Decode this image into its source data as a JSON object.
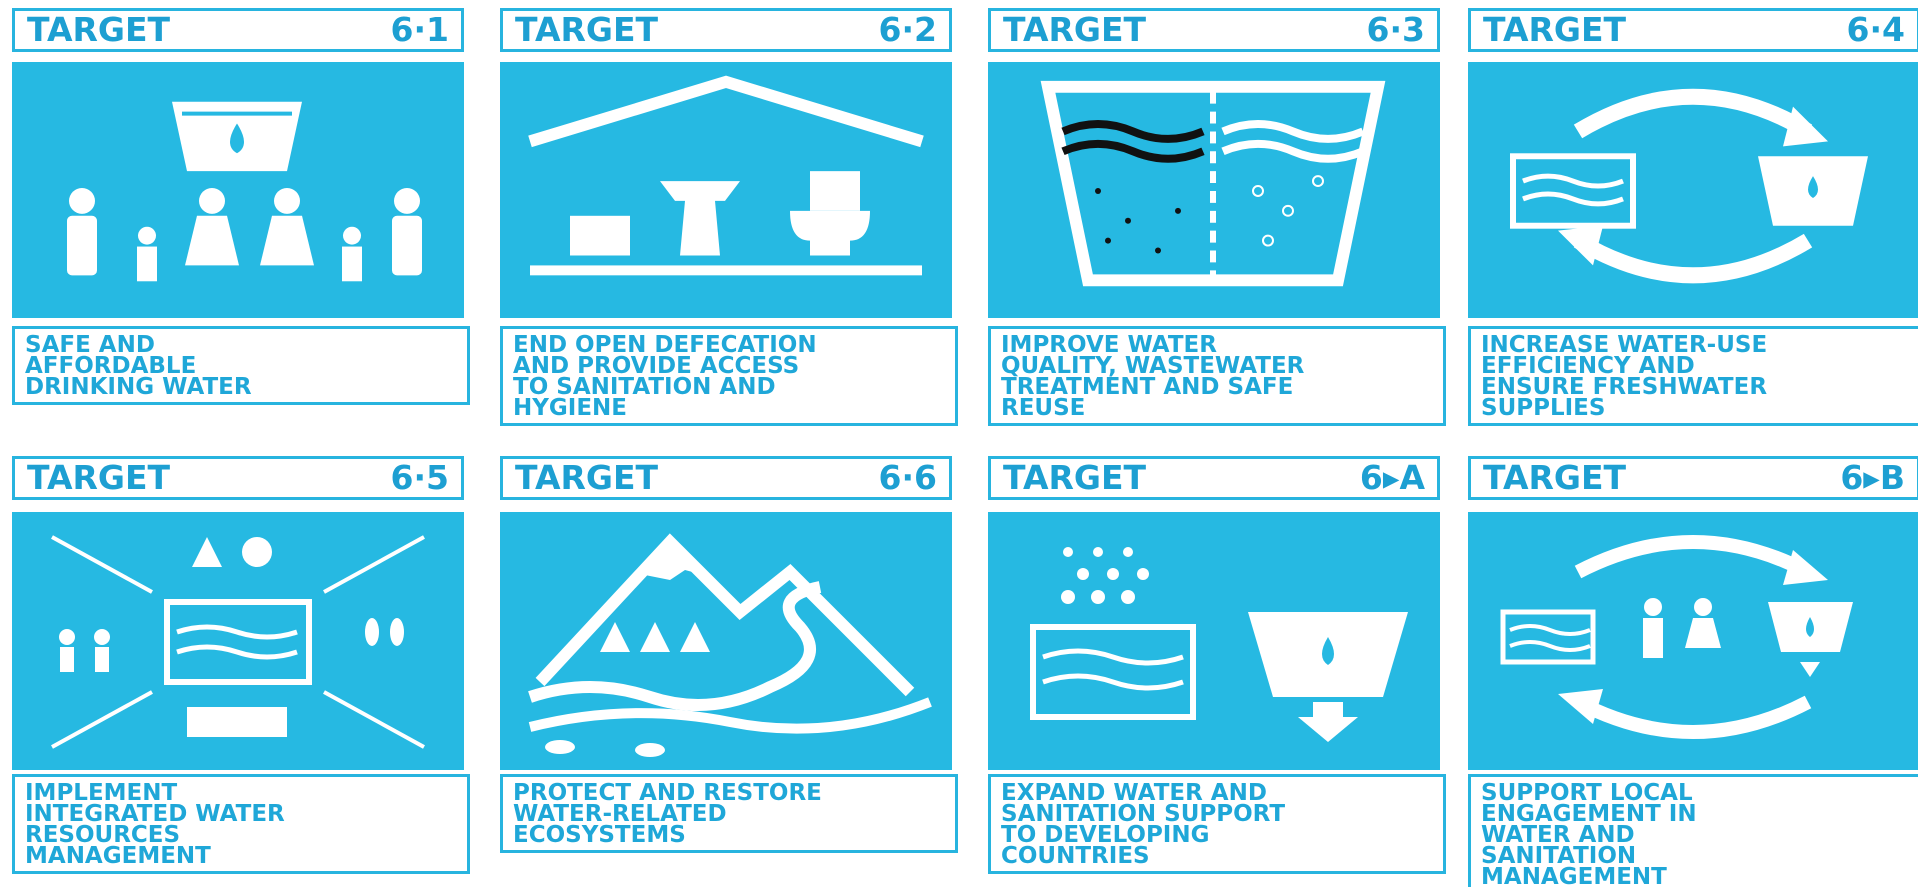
{
  "targets": [
    {
      "label": "TARGET",
      "number": "6·1",
      "description": [
        "SAFE AND",
        "AFFORDABLE",
        "DRINKING WATER"
      ]
    },
    {
      "label": "TARGET",
      "number": "6·2",
      "description": [
        "END OPEN DEFECATION",
        "AND PROVIDE ACCESS",
        "TO SANITATION AND",
        "HYGIENE"
      ]
    },
    {
      "label": "TARGET",
      "number": "6·3",
      "description": [
        "IMPROVE WATER",
        "QUALITY, WASTEWATER",
        "TREATMENT AND SAFE",
        "REUSE"
      ]
    },
    {
      "label": "TARGET",
      "number": "6·4",
      "description": [
        "INCREASE WATER-USE",
        "EFFICIENCY AND",
        "ENSURE FRESHWATER",
        "SUPPLIES"
      ]
    },
    {
      "label": "TARGET",
      "number": "6·5",
      "description": [
        "IMPLEMENT",
        "INTEGRATED WATER",
        "RESOURCES",
        "MANAGEMENT"
      ]
    },
    {
      "label": "TARGET",
      "number": "6·6",
      "description": [
        "PROTECT AND RESTORE",
        "WATER-RELATED",
        "ECOSYSTEMS"
      ]
    },
    {
      "label": "TARGET",
      "number": "6▸A",
      "description": [
        "EXPAND WATER AND",
        "SANITATION SUPPORT",
        "TO DEVELOPING",
        "COUNTRIES"
      ]
    },
    {
      "label": "TARGET",
      "number": "6▸B",
      "description": [
        "SUPPORT LOCAL",
        "ENGAGEMENT IN",
        "WATER AND",
        "SANITATION",
        "MANAGEMENT"
      ]
    }
  ]
}
